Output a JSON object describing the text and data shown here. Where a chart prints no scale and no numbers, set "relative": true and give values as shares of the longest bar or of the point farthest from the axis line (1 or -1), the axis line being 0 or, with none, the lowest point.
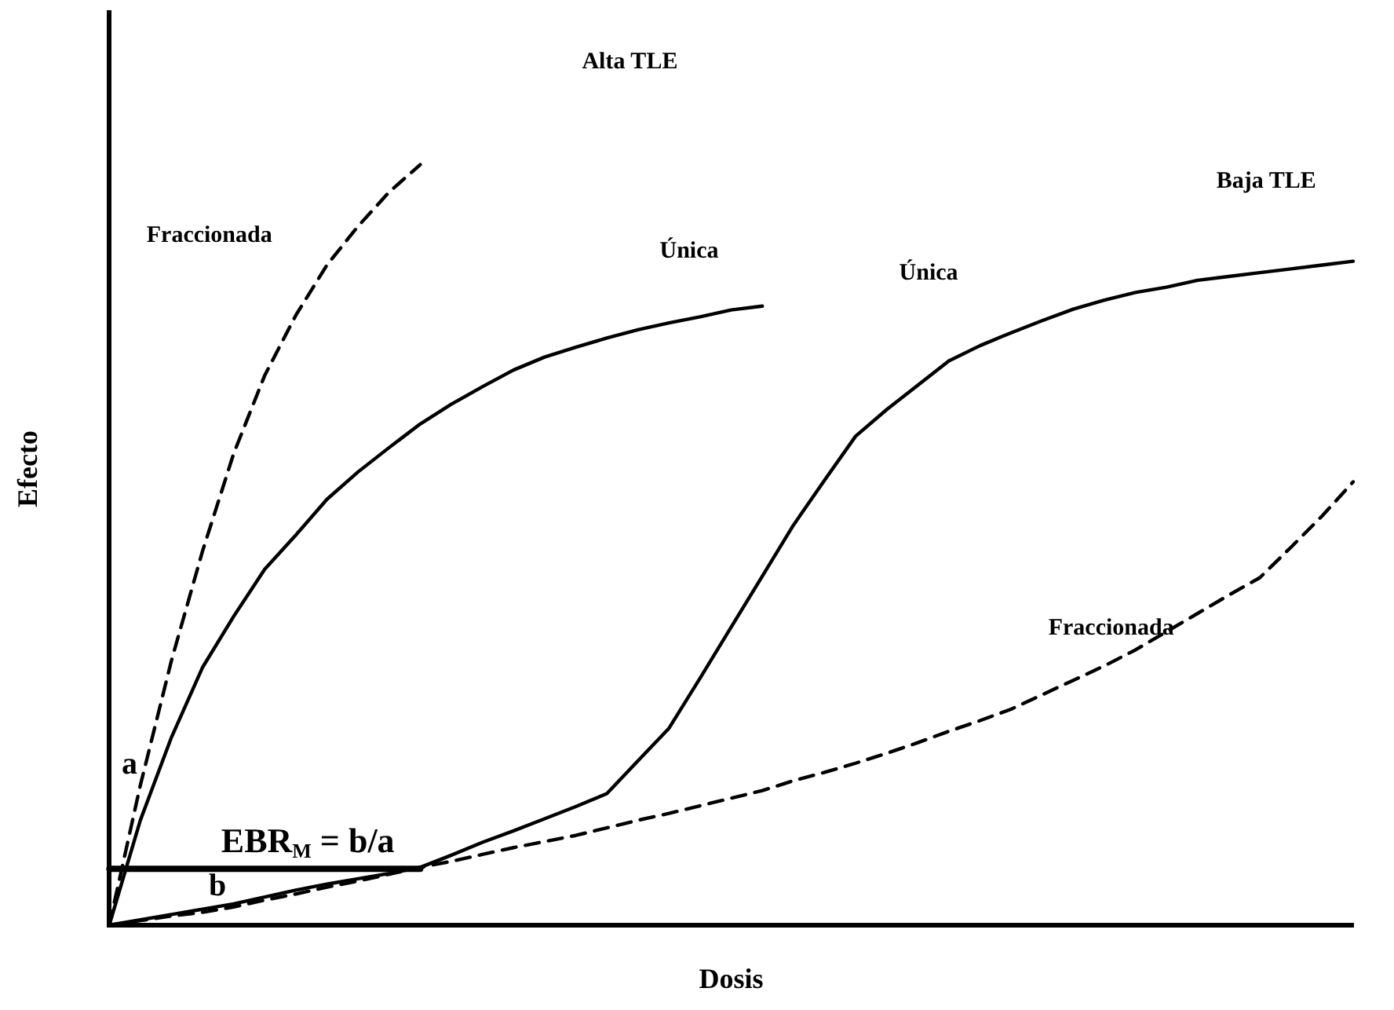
{
  "chart_data": {
    "type": "line",
    "relative": true,
    "xlabel": "Dosis",
    "ylabel": "Efecto",
    "grid": false,
    "legend": false,
    "marker": "none",
    "categories": [
      null,
      null,
      null,
      null,
      null,
      null,
      null,
      null,
      null,
      null,
      null,
      null,
      null,
      null,
      null,
      null,
      null,
      null,
      null,
      null,
      null,
      null,
      null,
      null,
      null,
      null,
      null,
      null,
      null,
      null,
      null,
      null,
      null,
      null,
      null,
      null,
      null,
      null,
      null,
      null,
      null
    ],
    "series": [
      {
        "name": "Fraccionada",
        "color": "#000000",
        "line_style": "dashed",
        "values": [
          0,
          0.184,
          0.348,
          0.492,
          0.62,
          0.723,
          0.802,
          0.868,
          0.919,
          0.964,
          1,
          null,
          null,
          null,
          null,
          null,
          null,
          null,
          null,
          null,
          null,
          null,
          null,
          null,
          null,
          null,
          null,
          null,
          null,
          null,
          null,
          null,
          null,
          null,
          null,
          null,
          null,
          null,
          null,
          null,
          null
        ]
      },
      {
        "name": "Única",
        "color": "#000000",
        "line_style": "solid",
        "values": [
          0,
          0.138,
          0.247,
          0.339,
          0.406,
          0.468,
          0.513,
          0.56,
          0.596,
          0.628,
          0.659,
          0.685,
          0.708,
          0.73,
          0.747,
          0.76,
          0.772,
          0.783,
          0.792,
          0.8,
          0.809,
          0.814,
          null,
          null,
          null,
          null,
          null,
          null,
          null,
          null,
          null,
          null,
          null,
          null,
          null,
          null,
          null,
          null,
          null,
          null,
          null
        ]
      },
      {
        "name": "Única",
        "color": "#000000",
        "line_style": "solid",
        "values": [
          0,
          0.007,
          0.014,
          0.021,
          0.028,
          0.037,
          0.046,
          0.054,
          0.061,
          0.068,
          0.076,
          0.092,
          0.109,
          0.124,
          0.14,
          0.156,
          0.173,
          0.216,
          0.259,
          0.325,
          0.392,
          0.459,
          0.526,
          0.585,
          0.643,
          0.678,
          0.71,
          0.742,
          0.762,
          0.779,
          0.795,
          0.81,
          0.822,
          0.832,
          0.839,
          0.848,
          0.853,
          0.858,
          0.863,
          0.868,
          0.873
        ]
      },
      {
        "name": "Fraccionada",
        "color": "#000000",
        "line_style": "dashed",
        "values": [
          0,
          0.006,
          0.012,
          0.017,
          0.024,
          0.033,
          0.041,
          0.05,
          0.058,
          0.067,
          0.076,
          0.084,
          0.093,
          0.102,
          0.11,
          0.118,
          0.128,
          0.138,
          0.147,
          0.157,
          0.167,
          0.177,
          0.19,
          0.201,
          0.213,
          0.226,
          0.24,
          0.255,
          0.269,
          0.284,
          0.303,
          0.322,
          0.341,
          0.362,
          0.386,
          0.41,
          0.434,
          0.457,
          0.497,
          0.538,
          0.583
        ]
      },
      {
        "color": "#000000",
        "line_style": "solid",
        "values": [
          0.074,
          0.074,
          0.074,
          0.074,
          0.074,
          0.074,
          0.074,
          0.074,
          0.074,
          0.074,
          0.074,
          null,
          null,
          null,
          null,
          null,
          null,
          null,
          null,
          null,
          null,
          null,
          null,
          null,
          null,
          null,
          null,
          null,
          null,
          null,
          null,
          null,
          null,
          null,
          null,
          null,
          null,
          null,
          null,
          null,
          null
        ]
      }
    ],
    "annotations": [
      "Alta TLE",
      "Baja TLE",
      "a",
      "b",
      "EBR$_{M}$ = b/a"
    ]
  }
}
